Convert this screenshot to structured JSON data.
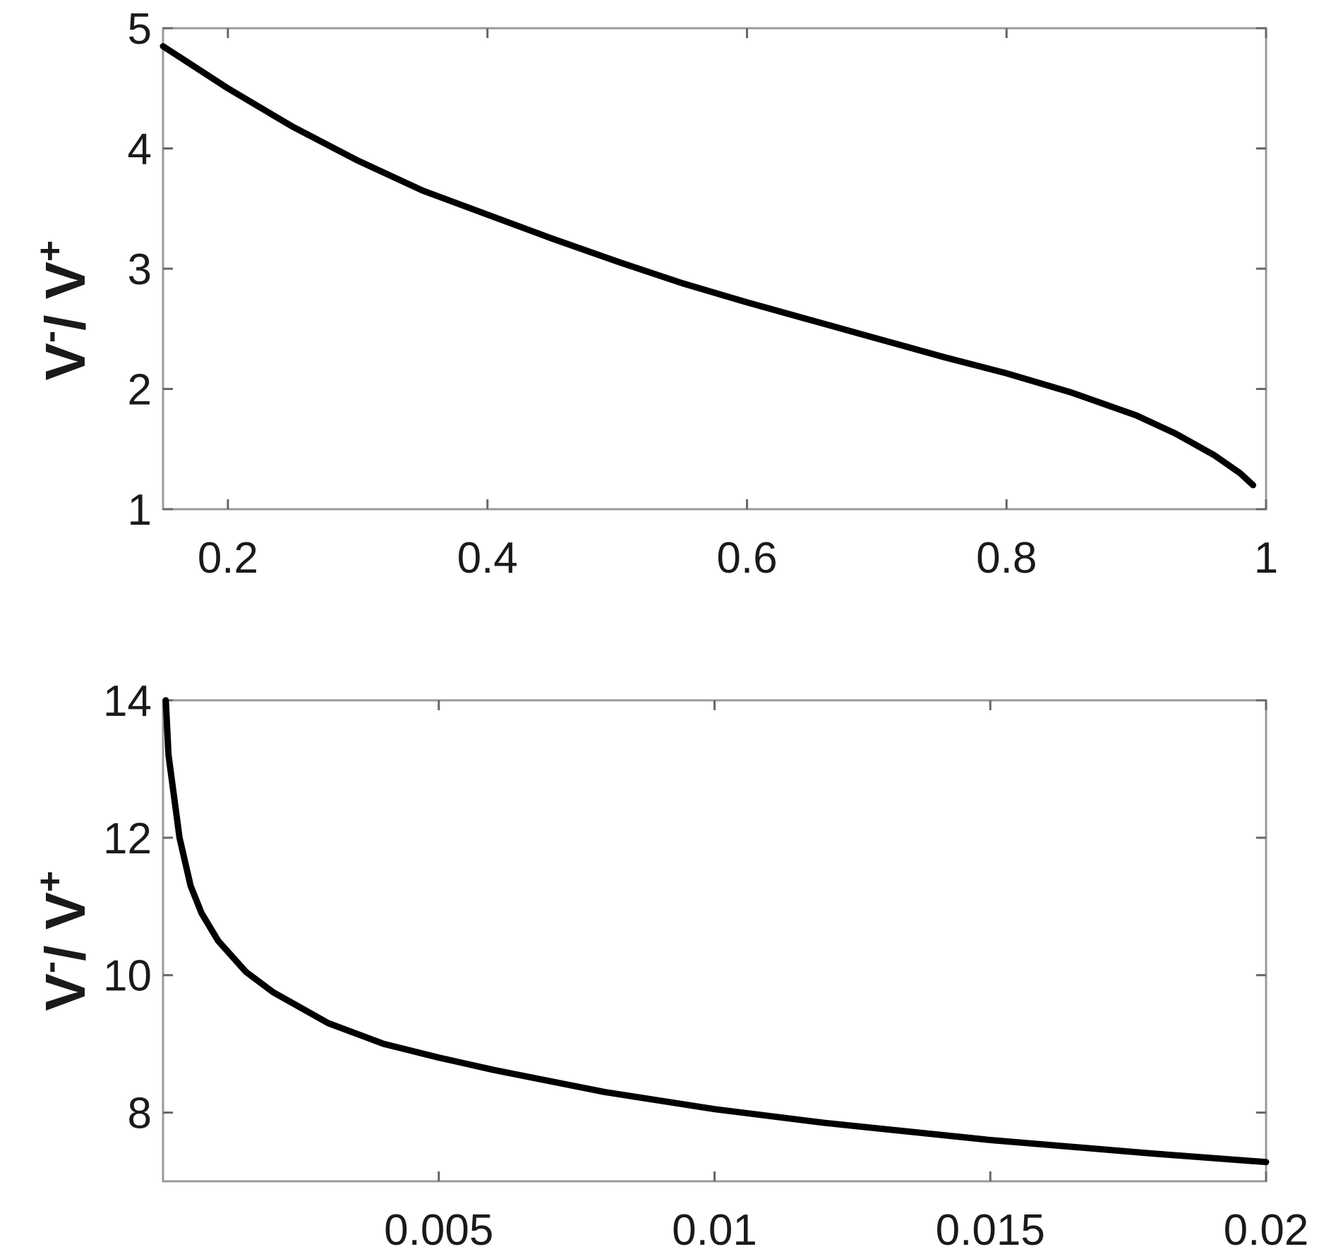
{
  "chart_data": [
    {
      "type": "line",
      "title": "",
      "xlabel": "",
      "ylabel": {
        "base": "V",
        "sup_minus": "-",
        "sep": "/ ",
        "base2": "V",
        "sup_plus": "+"
      },
      "xlim": [
        0.15,
        1.0
      ],
      "ylim": [
        1,
        5
      ],
      "grid": false,
      "x_ticks": [
        0.2,
        0.4,
        0.6,
        0.8,
        1.0
      ],
      "x_tick_labels": [
        "0.2",
        "0.4",
        "0.6",
        "0.8",
        "1"
      ],
      "y_ticks": [
        1,
        2,
        3,
        4,
        5
      ],
      "y_tick_labels": [
        "1",
        "2",
        "3",
        "4",
        "5"
      ],
      "series": [
        {
          "color": "#000000",
          "x": [
            0.15,
            0.2,
            0.25,
            0.3,
            0.35,
            0.4,
            0.45,
            0.5,
            0.55,
            0.6,
            0.65,
            0.7,
            0.75,
            0.8,
            0.85,
            0.9,
            0.93,
            0.96,
            0.98,
            0.99
          ],
          "y": [
            4.85,
            4.5,
            4.18,
            3.9,
            3.65,
            3.45,
            3.25,
            3.06,
            2.88,
            2.72,
            2.57,
            2.42,
            2.27,
            2.13,
            1.97,
            1.78,
            1.63,
            1.45,
            1.3,
            1.2
          ]
        }
      ]
    },
    {
      "type": "line",
      "title": "",
      "xlabel": "",
      "ylabel": {
        "base": "V",
        "sup_minus": "-",
        "sep": "/ ",
        "base2": "V",
        "sup_plus": "+"
      },
      "xlim": [
        0.0,
        0.02
      ],
      "ylim": [
        7,
        14
      ],
      "grid": false,
      "x_ticks": [
        0.005,
        0.01,
        0.015,
        0.02
      ],
      "x_tick_labels": [
        "0.005",
        "0.01",
        "0.015",
        "0.02"
      ],
      "y_ticks": [
        8,
        10,
        12,
        14
      ],
      "y_tick_labels": [
        "8",
        "10",
        "12",
        "14"
      ],
      "series": [
        {
          "color": "#000000",
          "x": [
            5e-05,
            0.0001,
            0.0002,
            0.0003,
            0.0005,
            0.0007,
            0.001,
            0.0015,
            0.002,
            0.003,
            0.004,
            0.005,
            0.006,
            0.008,
            0.01,
            0.012,
            0.015,
            0.018,
            0.02
          ],
          "y": [
            14.0,
            13.2,
            12.6,
            12.0,
            11.3,
            10.9,
            10.5,
            10.05,
            9.75,
            9.3,
            9.0,
            8.8,
            8.62,
            8.3,
            8.05,
            7.85,
            7.6,
            7.4,
            7.28
          ]
        }
      ]
    }
  ]
}
